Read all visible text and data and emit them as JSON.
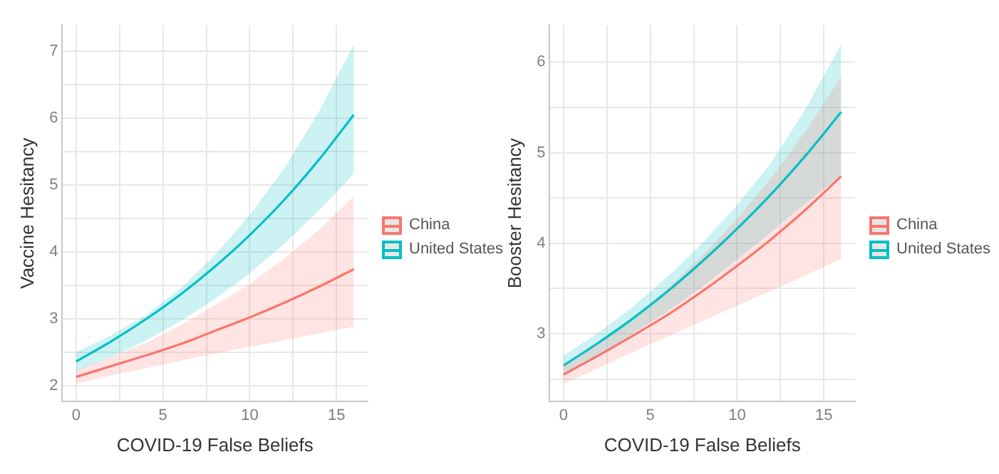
{
  "chart_data": [
    {
      "type": "line",
      "xlabel": "COVID-19 False Beliefs",
      "ylabel": "Vaccine Hesitancy",
      "x": [
        0,
        2,
        4,
        6,
        8,
        10,
        12,
        14,
        16
      ],
      "xlim": [
        -0.8,
        16.8
      ],
      "xticks": [
        0,
        {
          "value": 2.5,
          "label": null
        },
        5,
        {
          "value": 7.5,
          "label": null
        },
        10,
        {
          "value": 12.5,
          "label": null
        },
        15
      ],
      "ylim": [
        1.76,
        7.39
      ],
      "yticks": [
        2,
        {
          "value": 2.5,
          "label": null
        },
        3,
        {
          "value": 3.5,
          "label": null
        },
        4,
        {
          "value": 4.5,
          "label": null
        },
        5,
        {
          "value": 5.5,
          "label": null
        },
        6,
        {
          "value": 6.5,
          "label": null
        },
        7
      ],
      "grid": true,
      "legend": "right",
      "line_style": "solid",
      "marker": "none",
      "series": [
        {
          "name": "China",
          "color": "#f8766d",
          "values": [
            2.13,
            2.29,
            2.45,
            2.62,
            2.82,
            3.02,
            3.24,
            3.48,
            3.74
          ],
          "lower": [
            2.03,
            2.15,
            2.26,
            2.37,
            2.48,
            2.58,
            2.68,
            2.78,
            2.88
          ],
          "upper": [
            2.23,
            2.42,
            2.64,
            2.9,
            3.2,
            3.52,
            3.9,
            4.33,
            4.83
          ]
        },
        {
          "name": "United States",
          "color": "#00bfc4",
          "values": [
            2.36,
            2.66,
            2.99,
            3.36,
            3.78,
            4.25,
            4.78,
            5.38,
            6.05
          ],
          "lower": [
            2.22,
            2.42,
            2.67,
            2.96,
            3.3,
            3.68,
            4.12,
            4.62,
            5.17
          ],
          "upper": [
            2.5,
            2.75,
            3.05,
            3.45,
            3.95,
            4.55,
            5.25,
            6.1,
            7.1
          ]
        }
      ]
    },
    {
      "type": "line",
      "xlabel": "COVID-19 False Beliefs",
      "ylabel": "Booster Hesitancy",
      "x": [
        0,
        2,
        4,
        6,
        8,
        10,
        12,
        14,
        16
      ],
      "xlim": [
        -0.8,
        16.8
      ],
      "xticks": [
        0,
        {
          "value": 2.5,
          "label": null
        },
        5,
        {
          "value": 7.5,
          "label": null
        },
        10,
        {
          "value": 12.5,
          "label": null
        },
        15
      ],
      "ylim": [
        2.25,
        6.41
      ],
      "yticks": [
        {
          "value": 2.5,
          "label": null
        },
        3,
        {
          "value": 3.5,
          "label": null
        },
        4,
        {
          "value": 4.5,
          "label": null
        },
        5,
        {
          "value": 5.5,
          "label": null
        },
        6
      ],
      "grid": true,
      "legend": "right",
      "line_style": "solid",
      "marker": "none",
      "series": [
        {
          "name": "China",
          "color": "#f8766d",
          "values": [
            2.55,
            2.76,
            2.98,
            3.21,
            3.47,
            3.75,
            4.05,
            4.38,
            4.74
          ],
          "lower": [
            2.45,
            2.62,
            2.8,
            2.97,
            3.14,
            3.31,
            3.48,
            3.65,
            3.83
          ],
          "upper": [
            2.65,
            2.9,
            3.18,
            3.5,
            3.86,
            4.27,
            4.73,
            5.25,
            5.84
          ]
        },
        {
          "name": "United States",
          "color": "#00bfc4",
          "values": [
            2.65,
            2.9,
            3.17,
            3.47,
            3.8,
            4.16,
            4.55,
            4.98,
            5.45
          ],
          "lower": [
            2.55,
            2.76,
            3.0,
            3.25,
            3.52,
            3.82,
            4.13,
            4.45,
            4.75
          ],
          "upper": [
            2.76,
            3.01,
            3.3,
            3.63,
            4.0,
            4.42,
            4.9,
            5.5,
            6.2
          ]
        }
      ]
    }
  ]
}
